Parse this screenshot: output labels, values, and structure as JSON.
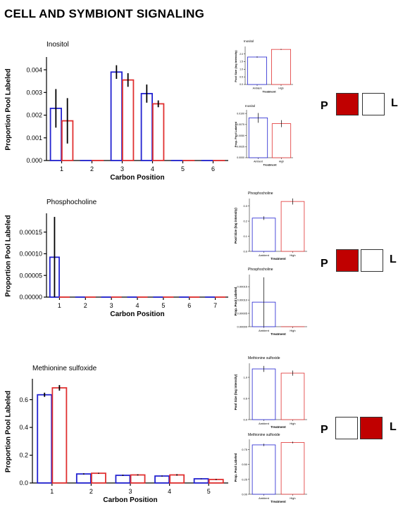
{
  "page": {
    "title": "CELL AND SYMBIONT SIGNALING"
  },
  "colors": {
    "ambient": "#2222d0",
    "high": "#e03030",
    "error": "#000000",
    "filled": "#c00000",
    "empty": "#ffffff"
  },
  "legends": [
    {
      "left_label": "P",
      "right_label": "L",
      "left_color": "#c00000",
      "right_color": "#ffffff"
    },
    {
      "left_label": "P",
      "right_label": "L",
      "left_color": "#c00000",
      "right_color": "#ffffff"
    },
    {
      "left_label": "P",
      "right_label": "L",
      "left_color": "#ffffff",
      "right_color": "#c00000"
    }
  ],
  "chart_data": [
    {
      "id": "inositol-positions",
      "type": "bar",
      "title": "Inositol",
      "xlabel": "Carbon Position",
      "ylabel": "Proportion Pool Labeled",
      "categories": [
        "1",
        "2",
        "3",
        "4",
        "5",
        "6"
      ],
      "ylim": [
        0,
        0.0045
      ],
      "yticks": [
        0,
        0.001,
        0.002,
        0.003,
        0.004
      ],
      "ytick_labels": [
        "0.000",
        "0.001",
        "0.002",
        "0.003",
        "0.004"
      ],
      "series": [
        {
          "values": [
            0.0023,
            0,
            0.0039,
            0.00295,
            0,
            0
          ],
          "err": [
            0.00085,
            0,
            0.0003,
            0.0004,
            0,
            0
          ]
        },
        {
          "values": [
            0.00175,
            0,
            0.00355,
            0.0025,
            0,
            0
          ],
          "err": [
            0.001,
            0,
            0.0003,
            0.00015,
            0,
            0
          ]
        }
      ]
    },
    {
      "id": "inositol-pool-size",
      "type": "bar",
      "title": "Inositol",
      "xlabel": "Treatment",
      "ylabel": "Pool Size (log intensity)",
      "categories": [
        "Ambient",
        "High"
      ],
      "ylim": [
        0,
        2.4
      ],
      "yticks": [
        0,
        0.5,
        1.0,
        1.5,
        2.0
      ],
      "ytick_labels": [
        "0.0",
        "0.5",
        "1.0",
        "1.5",
        "2.0"
      ],
      "series": [
        {
          "values": [
            1.8,
            2.3
          ],
          "err": [
            0.04,
            0.03
          ]
        }
      ]
    },
    {
      "id": "inositol-prop-labeled",
      "type": "bar",
      "title": "Inositol",
      "xlabel": "Treatment",
      "ylabel": "Prop. Pool Labeled",
      "categories": [
        "Ambient",
        "High"
      ],
      "ylim": [
        0,
        0.0105
      ],
      "yticks": [
        0,
        0.0025,
        0.005,
        0.0075,
        0.01
      ],
      "ytick_labels": [
        "0.0000",
        "0.0025",
        "0.0050",
        "0.0075",
        "0.0100"
      ],
      "series": [
        {
          "values": [
            0.009,
            0.0077
          ],
          "err": [
            0.0011,
            0.0008
          ]
        }
      ]
    },
    {
      "id": "phosphocholine-positions",
      "type": "bar",
      "title": "Phosphocholine",
      "xlabel": "Carbon Position",
      "ylabel": "Proportion Pool Labeled",
      "categories": [
        "1",
        "2",
        "3",
        "4",
        "5",
        "6",
        "7"
      ],
      "ylim": [
        0,
        0.00019
      ],
      "yticks": [
        0,
        5e-05,
        0.0001,
        0.00015
      ],
      "ytick_labels": [
        "0.00000",
        "0.00005",
        "0.00010",
        "0.00015"
      ],
      "series": [
        {
          "values": [
            9.2e-05,
            0,
            0,
            0,
            0,
            0,
            0
          ],
          "err": [
            9.3e-05,
            0,
            0,
            0,
            0,
            0,
            0
          ]
        },
        {
          "values": [
            0,
            0,
            0,
            0,
            0,
            0,
            0
          ],
          "err": [
            0,
            0,
            0,
            0,
            0,
            0,
            0
          ]
        }
      ]
    },
    {
      "id": "phosphocholine-pool-size",
      "type": "bar",
      "title": "Phosphocholine",
      "xlabel": "Treatment",
      "ylabel": "Pool Size (log intensity)",
      "categories": [
        "Ambient",
        "High"
      ],
      "ylim": [
        0,
        0.34
      ],
      "yticks": [
        0,
        0.1,
        0.2,
        0.3
      ],
      "ytick_labels": [
        "0.0",
        "0.1",
        "0.2",
        "0.3"
      ],
      "series": [
        {
          "values": [
            0.22,
            0.33
          ],
          "err": [
            0.012,
            0.02
          ]
        }
      ]
    },
    {
      "id": "phosphocholine-prop-labeled",
      "type": "bar",
      "title": "Phosphocholine",
      "xlabel": "Treatment",
      "ylabel": "Prop. Pool Labeled",
      "categories": [
        "Ambient",
        "High"
      ],
      "ylim": [
        0,
        0.00019
      ],
      "yticks": [
        0,
        5e-05,
        0.0001,
        0.00015
      ],
      "ytick_labels": [
        "0.00000",
        "0.00005",
        "0.00010",
        "0.00015"
      ],
      "series": [
        {
          "values": [
            9.2e-05,
            0
          ],
          "err": [
            9.3e-05,
            0
          ]
        }
      ]
    },
    {
      "id": "methionine-positions",
      "type": "bar",
      "title": "Methionine sulfoxide",
      "xlabel": "Carbon Position",
      "ylabel": "Proportion Pool Labeled",
      "categories": [
        "1",
        "2",
        "3",
        "4",
        "5"
      ],
      "ylim": [
        0,
        0.74
      ],
      "yticks": [
        0,
        0.2,
        0.4,
        0.6
      ],
      "ytick_labels": [
        "0.0",
        "0.2",
        "0.4",
        "0.6"
      ],
      "series": [
        {
          "values": [
            0.635,
            0.065,
            0.055,
            0.05,
            0.03
          ],
          "err": [
            0.015,
            0.004,
            0.004,
            0.003,
            0.002
          ]
        },
        {
          "values": [
            0.685,
            0.07,
            0.058,
            0.058,
            0.025
          ],
          "err": [
            0.02,
            0.003,
            0.004,
            0.005,
            0.003
          ]
        }
      ]
    },
    {
      "id": "methionine-pool-size",
      "type": "bar",
      "title": "Methionine sulfoxide",
      "xlabel": "Treatment",
      "ylabel": "Pool Size (log intensity)",
      "categories": [
        "Ambient",
        "High"
      ],
      "ylim": [
        0,
        1.3
      ],
      "yticks": [
        0,
        0.5,
        1.0
      ],
      "ytick_labels": [
        "0.0",
        "0.5",
        "1.0"
      ],
      "series": [
        {
          "values": [
            1.2,
            1.1
          ],
          "err": [
            0.07,
            0.06
          ]
        }
      ]
    },
    {
      "id": "methionine-prop-labeled",
      "type": "bar",
      "title": "Methionine sulfoxide",
      "xlabel": "Treatment",
      "ylabel": "Prop. Pool Labeled",
      "categories": [
        "Ambient",
        "High"
      ],
      "ylim": [
        0,
        0.9
      ],
      "yticks": [
        0,
        0.25,
        0.5,
        0.75
      ],
      "ytick_labels": [
        "0.00",
        "0.25",
        "0.50",
        "0.75"
      ],
      "series": [
        {
          "values": [
            0.83,
            0.87
          ],
          "err": [
            0.02,
            0.015
          ]
        }
      ]
    }
  ]
}
